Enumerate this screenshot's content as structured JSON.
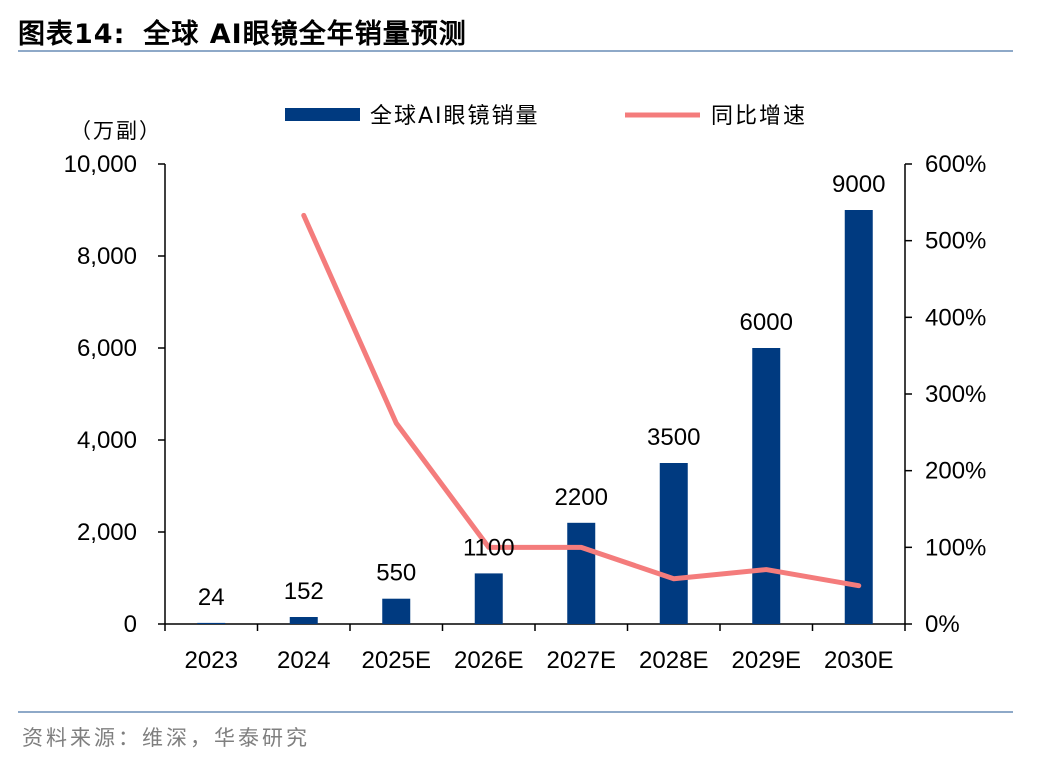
{
  "header": {
    "figure_number": "图表14:",
    "title": "全球 AI眼镜全年销量预测"
  },
  "source": "资料来源：维深，华泰研究",
  "chart_data": {
    "type": "bar+line",
    "categories": [
      "2023",
      "2024",
      "2025E",
      "2026E",
      "2027E",
      "2028E",
      "2029E",
      "2030E"
    ],
    "series": [
      {
        "name": "全球AI眼镜销量",
        "type": "bar",
        "axis": "left",
        "values": [
          24,
          152,
          550,
          1100,
          2200,
          3500,
          6000,
          9000
        ],
        "data_labels": [
          "24",
          "152",
          "550",
          "1100",
          "2200",
          "3500",
          "6000",
          "9000"
        ],
        "color": "#003A80"
      },
      {
        "name": "同比增速",
        "type": "line",
        "axis": "right",
        "values": [
          null,
          533,
          262,
          100,
          100,
          59,
          71,
          50
        ],
        "color": "#F47C7C"
      }
    ],
    "y_left": {
      "unit_label": "（万副）",
      "ylim": [
        0,
        10000
      ],
      "ticks": [
        0,
        2000,
        4000,
        6000,
        8000,
        10000
      ],
      "tick_labels": [
        "0",
        "2,000",
        "4,000",
        "6,000",
        "8,000",
        "10,000"
      ]
    },
    "y_right": {
      "ylim": [
        0,
        600
      ],
      "ticks": [
        0,
        100,
        200,
        300,
        400,
        500,
        600
      ],
      "tick_labels": [
        "0%",
        "100%",
        "200%",
        "300%",
        "400%",
        "500%",
        "600%"
      ]
    },
    "legend_position": "top-center",
    "grid": false
  }
}
